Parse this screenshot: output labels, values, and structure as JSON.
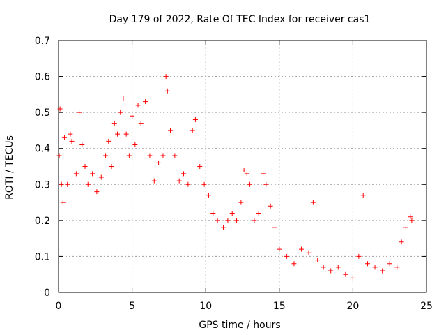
{
  "chart_data": {
    "type": "scatter",
    "title": "Day 179 of 2022, Rate Of TEC Index for receiver cas1",
    "xlabel": "GPS time / hours",
    "ylabel": "ROTI / TECUs",
    "xlim": [
      0,
      25
    ],
    "ylim": [
      0,
      0.7
    ],
    "xticks": [
      0,
      5,
      10,
      15,
      20,
      25
    ],
    "yticks": [
      0,
      0.1,
      0.2,
      0.3,
      0.4,
      0.5,
      0.6,
      0.7
    ],
    "xtick_labels": [
      "0",
      "5",
      "10",
      "15",
      "20",
      "25"
    ],
    "ytick_labels": [
      "0",
      "0.1",
      "0.2",
      "0.3",
      "0.4",
      "0.5",
      "0.6",
      "0.7"
    ],
    "grid": true,
    "marker": "+",
    "marker_color": "#ff0000",
    "series": [
      {
        "name": "ROTI",
        "points": [
          [
            0.05,
            0.38
          ],
          [
            0.1,
            0.51
          ],
          [
            0.2,
            0.3
          ],
          [
            0.3,
            0.25
          ],
          [
            0.4,
            0.43
          ],
          [
            0.6,
            0.3
          ],
          [
            0.8,
            0.44
          ],
          [
            0.9,
            0.42
          ],
          [
            1.2,
            0.33
          ],
          [
            1.4,
            0.5
          ],
          [
            1.6,
            0.41
          ],
          [
            1.8,
            0.35
          ],
          [
            2.0,
            0.3
          ],
          [
            2.3,
            0.33
          ],
          [
            2.6,
            0.28
          ],
          [
            2.9,
            0.32
          ],
          [
            3.2,
            0.38
          ],
          [
            3.4,
            0.42
          ],
          [
            3.6,
            0.35
          ],
          [
            3.8,
            0.47
          ],
          [
            4.0,
            0.44
          ],
          [
            4.2,
            0.5
          ],
          [
            4.4,
            0.54
          ],
          [
            4.6,
            0.44
          ],
          [
            4.8,
            0.38
          ],
          [
            5.0,
            0.49
          ],
          [
            5.2,
            0.41
          ],
          [
            5.4,
            0.52
          ],
          [
            5.6,
            0.47
          ],
          [
            5.9,
            0.53
          ],
          [
            6.2,
            0.38
          ],
          [
            6.5,
            0.31
          ],
          [
            6.8,
            0.36
          ],
          [
            7.1,
            0.38
          ],
          [
            7.3,
            0.6
          ],
          [
            7.4,
            0.56
          ],
          [
            7.6,
            0.45
          ],
          [
            7.9,
            0.38
          ],
          [
            8.2,
            0.31
          ],
          [
            8.5,
            0.33
          ],
          [
            8.8,
            0.3
          ],
          [
            9.1,
            0.45
          ],
          [
            9.3,
            0.48
          ],
          [
            9.6,
            0.35
          ],
          [
            9.9,
            0.3
          ],
          [
            10.2,
            0.27
          ],
          [
            10.5,
            0.22
          ],
          [
            10.8,
            0.2
          ],
          [
            11.2,
            0.18
          ],
          [
            11.5,
            0.2
          ],
          [
            11.8,
            0.22
          ],
          [
            12.1,
            0.2
          ],
          [
            12.4,
            0.25
          ],
          [
            12.6,
            0.34
          ],
          [
            12.8,
            0.33
          ],
          [
            13.0,
            0.3
          ],
          [
            13.3,
            0.2
          ],
          [
            13.6,
            0.22
          ],
          [
            13.9,
            0.33
          ],
          [
            14.1,
            0.3
          ],
          [
            14.4,
            0.24
          ],
          [
            14.7,
            0.18
          ],
          [
            15.0,
            0.12
          ],
          [
            15.5,
            0.1
          ],
          [
            16.0,
            0.08
          ],
          [
            16.5,
            0.12
          ],
          [
            17.0,
            0.11
          ],
          [
            17.3,
            0.25
          ],
          [
            17.6,
            0.09
          ],
          [
            18.0,
            0.07
          ],
          [
            18.5,
            0.06
          ],
          [
            19.0,
            0.07
          ],
          [
            19.5,
            0.05
          ],
          [
            20.0,
            0.04
          ],
          [
            20.4,
            0.1
          ],
          [
            20.7,
            0.27
          ],
          [
            21.0,
            0.08
          ],
          [
            21.5,
            0.07
          ],
          [
            22.0,
            0.06
          ],
          [
            22.5,
            0.08
          ],
          [
            23.0,
            0.07
          ],
          [
            23.3,
            0.14
          ],
          [
            23.6,
            0.18
          ],
          [
            23.9,
            0.21
          ],
          [
            24.0,
            0.2
          ]
        ]
      }
    ]
  }
}
